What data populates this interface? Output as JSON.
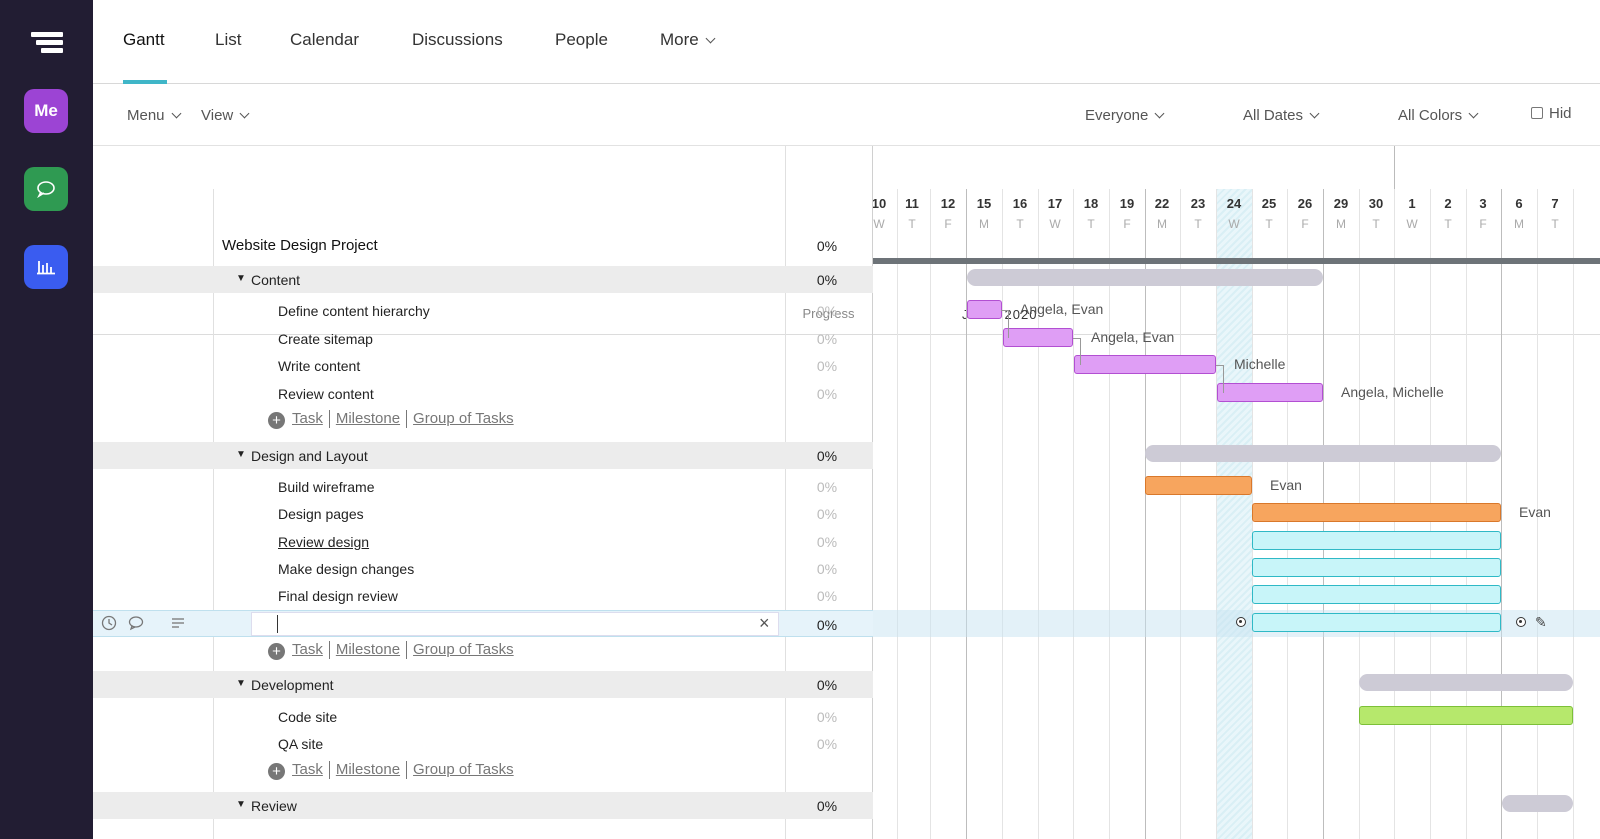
{
  "sidebar": {
    "me_label": "Me",
    "icons": [
      "logo-icon",
      "chat-icon",
      "reports-icon"
    ]
  },
  "tabs": [
    "Gantt",
    "List",
    "Calendar",
    "Discussions",
    "People",
    "More"
  ],
  "toolbar": {
    "menu": "Menu",
    "view": "View",
    "everyone": "Everyone",
    "all_dates": "All Dates",
    "all_colors": "All Colors",
    "hide": "Hid"
  },
  "header": {
    "progress": "Progress",
    "month": "JUNE 2020"
  },
  "days": [
    {
      "n": "10",
      "w": "W"
    },
    {
      "n": "11",
      "w": "T"
    },
    {
      "n": "12",
      "w": "F"
    },
    {
      "n": "15",
      "w": "M"
    },
    {
      "n": "16",
      "w": "T"
    },
    {
      "n": "17",
      "w": "W"
    },
    {
      "n": "18",
      "w": "T"
    },
    {
      "n": "19",
      "w": "F"
    },
    {
      "n": "22",
      "w": "M"
    },
    {
      "n": "23",
      "w": "T"
    },
    {
      "n": "24",
      "w": "W"
    },
    {
      "n": "25",
      "w": "T"
    },
    {
      "n": "26",
      "w": "F"
    },
    {
      "n": "29",
      "w": "M"
    },
    {
      "n": "30",
      "w": "T"
    },
    {
      "n": "1",
      "w": "W"
    },
    {
      "n": "2",
      "w": "T"
    },
    {
      "n": "3",
      "w": "F"
    },
    {
      "n": "6",
      "w": "M"
    },
    {
      "n": "7",
      "w": "T"
    }
  ],
  "project": {
    "name": "Website Design Project",
    "progress": "0%"
  },
  "rows": [
    {
      "type": "group",
      "name": "Content",
      "progress": "0%"
    },
    {
      "type": "task",
      "name": "Define content hierarchy",
      "progress": "0%"
    },
    {
      "type": "task",
      "name": "Create sitemap",
      "progress": "0%"
    },
    {
      "type": "task",
      "name": "Write content",
      "progress": "0%"
    },
    {
      "type": "task",
      "name": "Review content",
      "progress": "0%"
    },
    {
      "type": "add"
    },
    {
      "type": "group",
      "name": "Design and Layout",
      "progress": "0%"
    },
    {
      "type": "task",
      "name": "Build wireframe",
      "progress": "0%"
    },
    {
      "type": "task",
      "name": "Design pages",
      "progress": "0%"
    },
    {
      "type": "task",
      "name": "Review design",
      "progress": "0%",
      "underline": true
    },
    {
      "type": "task",
      "name": "Make design changes",
      "progress": "0%"
    },
    {
      "type": "task",
      "name": "Final design review",
      "progress": "0%"
    },
    {
      "type": "edit",
      "value": "",
      "progress": "0%"
    },
    {
      "type": "add"
    },
    {
      "type": "group",
      "name": "Development",
      "progress": "0%"
    },
    {
      "type": "task",
      "name": "Code site",
      "progress": "0%"
    },
    {
      "type": "task",
      "name": "QA site",
      "progress": "0%"
    },
    {
      "type": "add"
    },
    {
      "type": "group",
      "name": "Review",
      "progress": "0%"
    }
  ],
  "add_links": {
    "task": "Task",
    "milestone": "Milestone",
    "group": "Group of Tasks"
  },
  "gantt_bars": [
    {
      "row": 0,
      "start": "15",
      "end": "26",
      "color": "#cdcbd6",
      "kind": "group"
    },
    {
      "row": 1,
      "start": "15",
      "end": "15",
      "color": "#df9ef5",
      "assignees": "Angela, Evan"
    },
    {
      "row": 2,
      "start": "16",
      "end": "17",
      "color": "#df9ef5",
      "assignees": "Angela, Evan"
    },
    {
      "row": 3,
      "start": "18",
      "end": "23",
      "color": "#df9ef5",
      "assignees": "Michelle"
    },
    {
      "row": 4,
      "start": "24",
      "end": "26",
      "color": "#df9ef5",
      "assignees": "Angela, Michelle"
    },
    {
      "row": 6,
      "start": "22",
      "end": "3",
      "color": "#cdcbd6",
      "kind": "group"
    },
    {
      "row": 7,
      "start": "22",
      "end": "24",
      "color": "#f7a55e",
      "assignees": "Evan"
    },
    {
      "row": 8,
      "start": "25",
      "end": "3",
      "color": "#f7a55e",
      "assignees": "Evan"
    },
    {
      "row": 9,
      "start": "25",
      "end": "3",
      "color": "#c8f5f9"
    },
    {
      "row": 10,
      "start": "25",
      "end": "3",
      "color": "#c8f5f9"
    },
    {
      "row": 11,
      "start": "25",
      "end": "3",
      "color": "#c8f5f9"
    },
    {
      "row": 12,
      "start": "25",
      "end": "3",
      "color": "#c8f5f9"
    },
    {
      "row": 14,
      "start": "30",
      "end": "7",
      "color": "#cdcbd6",
      "kind": "group"
    },
    {
      "row": 15,
      "start": "30",
      "end": "7",
      "color": "#b6e86c"
    },
    {
      "row": 18,
      "start": "6",
      "end": "7",
      "color": "#cdcbd6",
      "kind": "group"
    }
  ],
  "today": "24",
  "colors": {
    "rail": "#221d33",
    "accent": "#3fb6c8",
    "me": "#9c44d4",
    "chat": "#2f9a52",
    "reports": "#3a5cf0"
  }
}
